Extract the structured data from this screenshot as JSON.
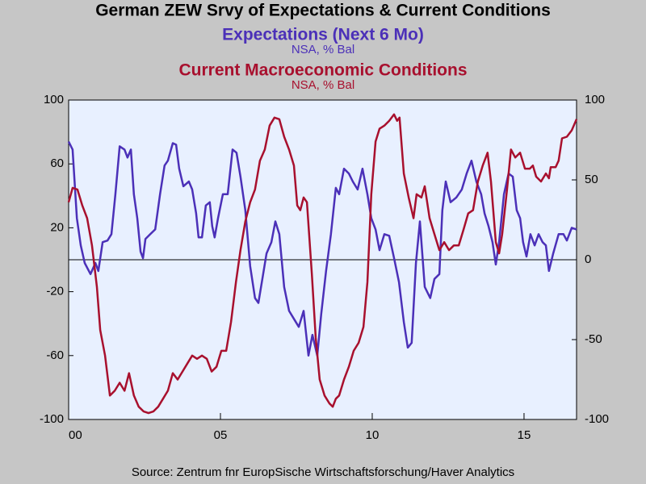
{
  "chart_data": {
    "type": "line",
    "title": "German ZEW Srvy of Expectations & Current Conditions",
    "source": "Source:  Zentrum fnr EuropSische Wirtschaftsforschung/Haver Analytics",
    "xlim": [
      2000,
      2016.73
    ],
    "xticks": [
      {
        "value": 2000,
        "label": "00"
      },
      {
        "value": 2005,
        "label": "05"
      },
      {
        "value": 2010,
        "label": "10"
      },
      {
        "value": 2015,
        "label": "15"
      }
    ],
    "ylim": [
      -100,
      100
    ],
    "yticks": [
      -100,
      -60,
      -20,
      20,
      60,
      100
    ],
    "y2lim": [
      -100,
      100
    ],
    "y2ticks": [
      -100,
      -50,
      0,
      50,
      100
    ],
    "zero_line": true,
    "series": [
      {
        "name": "Expectations (Next 6 Mo)",
        "unit": "NSA, % Bal",
        "color": "#4b30b8",
        "axis": "y",
        "x": [
          2000,
          2000.13,
          2000.27,
          2000.4,
          2000.53,
          2000.72,
          2000.88,
          2000.98,
          2001.12,
          2001.28,
          2001.41,
          2001.54,
          2001.68,
          2001.84,
          2001.94,
          2002.05,
          2002.15,
          2002.26,
          2002.37,
          2002.45,
          2002.53,
          2002.69,
          2002.85,
          2003.01,
          2003.16,
          2003.27,
          2003.43,
          2003.54,
          2003.64,
          2003.78,
          2003.96,
          2004.07,
          2004.2,
          2004.28,
          2004.39,
          2004.52,
          2004.65,
          2004.73,
          2004.81,
          2004.92,
          2005.08,
          2005.24,
          2005.4,
          2005.53,
          2005.66,
          2005.82,
          2005.98,
          2006.14,
          2006.25,
          2006.38,
          2006.52,
          2006.68,
          2006.81,
          2006.94,
          2007.1,
          2007.26,
          2007.42,
          2007.58,
          2007.74,
          2007.9,
          2008.03,
          2008.19,
          2008.32,
          2008.48,
          2008.64,
          2008.8,
          2008.91,
          2009.07,
          2009.23,
          2009.36,
          2009.52,
          2009.68,
          2009.84,
          2009.97,
          2010.11,
          2010.24,
          2010.4,
          2010.56,
          2010.72,
          2010.88,
          2011.04,
          2011.17,
          2011.3,
          2011.44,
          2011.57,
          2011.73,
          2011.91,
          2012.05,
          2012.21,
          2012.31,
          2012.42,
          2012.58,
          2012.77,
          2012.95,
          2013.11,
          2013.27,
          2013.43,
          2013.59,
          2013.7,
          2013.83,
          2013.96,
          2014.07,
          2014.18,
          2014.34,
          2014.49,
          2014.63,
          2014.76,
          2014.87,
          2014.97,
          2015.08,
          2015.21,
          2015.35,
          2015.48,
          2015.61,
          2015.72,
          2015.82,
          2015.96,
          2016.14,
          2016.3,
          2016.41,
          2016.57,
          2016.73
        ],
        "values": [
          74,
          69,
          26,
          9,
          -2,
          -9,
          -2,
          -7,
          11,
          12,
          16,
          41,
          71,
          69,
          64,
          69,
          41,
          26,
          5,
          1,
          13,
          16,
          19,
          41,
          59,
          62,
          73,
          72,
          57,
          46,
          49,
          44,
          29,
          14,
          14,
          34,
          36,
          21,
          14,
          26,
          41,
          41,
          69,
          67,
          52,
          31,
          -4,
          -24,
          -27,
          -12,
          4,
          11,
          24,
          16,
          -17,
          -32,
          -37,
          -42,
          -32,
          -60,
          -47,
          -60,
          -34,
          -7,
          16,
          45,
          41,
          57,
          54,
          49,
          44,
          57,
          41,
          26,
          19,
          6,
          16,
          15,
          1,
          -14,
          -39,
          -55,
          -52,
          -2,
          24,
          -17,
          -24,
          -12,
          -9,
          31,
          49,
          36,
          39,
          44,
          54,
          62,
          49,
          41,
          29,
          21,
          11,
          -3,
          11,
          41,
          54,
          52,
          31,
          26,
          11,
          2,
          16,
          9,
          16,
          11,
          9,
          -7,
          4,
          16,
          16,
          12,
          20,
          19
        ]
      },
      {
        "name": "Current Macroeconomic Conditions",
        "unit": "NSA, % Bal",
        "color": "#a8102e",
        "axis": "y2",
        "x": [
          2000,
          2000.13,
          2000.29,
          2000.45,
          2000.61,
          2000.77,
          2000.93,
          2001.04,
          2001.2,
          2001.36,
          2001.52,
          2001.68,
          2001.84,
          2001.99,
          2002.15,
          2002.31,
          2002.47,
          2002.63,
          2002.79,
          2002.95,
          2003.11,
          2003.27,
          2003.43,
          2003.59,
          2003.75,
          2003.91,
          2004.07,
          2004.23,
          2004.39,
          2004.55,
          2004.71,
          2004.87,
          2005.03,
          2005.19,
          2005.35,
          2005.51,
          2005.66,
          2005.82,
          2005.98,
          2006.14,
          2006.3,
          2006.46,
          2006.62,
          2006.78,
          2006.94,
          2007.1,
          2007.26,
          2007.42,
          2007.53,
          2007.63,
          2007.74,
          2007.85,
          2008.01,
          2008.14,
          2008.27,
          2008.43,
          2008.59,
          2008.7,
          2008.8,
          2008.91,
          2009.07,
          2009.23,
          2009.39,
          2009.55,
          2009.71,
          2009.84,
          2009.97,
          2010.11,
          2010.24,
          2010.4,
          2010.56,
          2010.72,
          2010.82,
          2010.9,
          2011.04,
          2011.2,
          2011.36,
          2011.46,
          2011.62,
          2011.73,
          2011.89,
          2012.05,
          2012.21,
          2012.37,
          2012.53,
          2012.69,
          2012.85,
          2013.01,
          2013.16,
          2013.32,
          2013.48,
          2013.64,
          2013.8,
          2013.91,
          2014.07,
          2014.18,
          2014.28,
          2014.44,
          2014.57,
          2014.71,
          2014.87,
          2015.03,
          2015.19,
          2015.29,
          2015.4,
          2015.56,
          2015.72,
          2015.82,
          2015.88,
          2016.04,
          2016.14,
          2016.25,
          2016.41,
          2016.57,
          2016.73
        ],
        "values": [
          36,
          45,
          44,
          34,
          26,
          9,
          -17,
          -44,
          -60,
          -85,
          -82,
          -77,
          -82,
          -71,
          -85,
          -92,
          -95,
          -96,
          -95,
          -92,
          -87,
          -82,
          -71,
          -75,
          -70,
          -65,
          -60,
          -62,
          -60,
          -62,
          -70,
          -67,
          -57,
          -57,
          -39,
          -14,
          6,
          24,
          36,
          44,
          62,
          69,
          84,
          89,
          88,
          77,
          69,
          59,
          34,
          31,
          39,
          36,
          -9,
          -49,
          -75,
          -85,
          -90,
          -92,
          -87,
          -85,
          -75,
          -67,
          -57,
          -52,
          -42,
          -14,
          41,
          74,
          82,
          84,
          87,
          91,
          87,
          89,
          54,
          39,
          26,
          41,
          39,
          46,
          26,
          16,
          6,
          11,
          6,
          9,
          9,
          19,
          29,
          31,
          49,
          59,
          67,
          49,
          11,
          4,
          16,
          44,
          69,
          64,
          67,
          57,
          57,
          59,
          52,
          49,
          54,
          51,
          58,
          58,
          62,
          76,
          77,
          81,
          88
        ]
      }
    ]
  }
}
